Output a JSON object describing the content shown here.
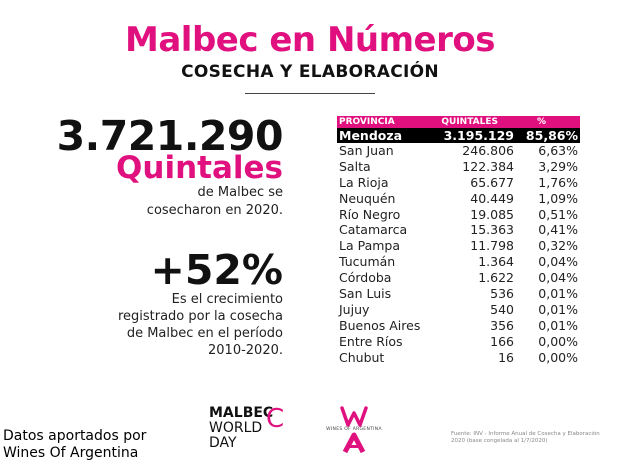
{
  "header": {
    "title": "Malbec en Números",
    "subtitle": "COSECHA Y ELABORACIÓN"
  },
  "harvest": {
    "total": "3.721.290",
    "unit": "Quintales",
    "description_line1": "de Malbec se",
    "description_line2": "cosecharon en 2020."
  },
  "growth": {
    "value": "+52%",
    "line1": "Es el crecimiento",
    "line2": "registrado por la cosecha",
    "line3": "de Malbec en el período",
    "line4": "2010-2020."
  },
  "table": {
    "headers": {
      "provincia": "PROVINCIA",
      "quintales": "QUINTALES",
      "percent": "%"
    },
    "highlight": {
      "provincia": "Mendoza",
      "quintales": "3.195.129",
      "percent": "85,86%"
    },
    "rows": [
      {
        "provincia": "San Juan",
        "quintales": "246.806",
        "percent": "6,63%"
      },
      {
        "provincia": "Salta",
        "quintales": "122.384",
        "percent": "3,29%"
      },
      {
        "provincia": "La Rioja",
        "quintales": "65.677",
        "percent": "1,76%"
      },
      {
        "provincia": "Neuquén",
        "quintales": "40.449",
        "percent": "1,09%"
      },
      {
        "provincia": "Río Negro",
        "quintales": "19.085",
        "percent": "0,51%"
      },
      {
        "provincia": "Catamarca",
        "quintales": "15.363",
        "percent": "0,41%"
      },
      {
        "provincia": "La Pampa",
        "quintales": "11.798",
        "percent": "0,32%"
      },
      {
        "provincia": "Tucumán",
        "quintales": "1.364",
        "percent": "0,04%"
      },
      {
        "provincia": "Córdoba",
        "quintales": "1.622",
        "percent": "0,04%"
      },
      {
        "provincia": "San Luis",
        "quintales": "536",
        "percent": "0,01%"
      },
      {
        "provincia": "Jujuy",
        "quintales": "540",
        "percent": "0,01%"
      },
      {
        "provincia": "Buenos Aires",
        "quintales": "356",
        "percent": "0,01%"
      },
      {
        "provincia": "Entre Ríos",
        "quintales": "166",
        "percent": "0,00%"
      },
      {
        "provincia": "Chubut",
        "quintales": "16",
        "percent": "0,00%"
      }
    ]
  },
  "footer": {
    "credit_line1": "Datos aportados por",
    "credit_line2": "Wines Of Argentina",
    "mwd_line1": "MALBEC",
    "mwd_line2": "WORLD",
    "mwd_line3": "DAY",
    "woa_caption": "WINES OF ARGENTINA",
    "source_line1": "Fuente: INV - Informe Anual de Cosecha y Elaboración",
    "source_line2": "2020 (base congelada al 1/7/2020)"
  },
  "colors": {
    "accent": "#e0117f",
    "highlight_bg": "#000000"
  }
}
